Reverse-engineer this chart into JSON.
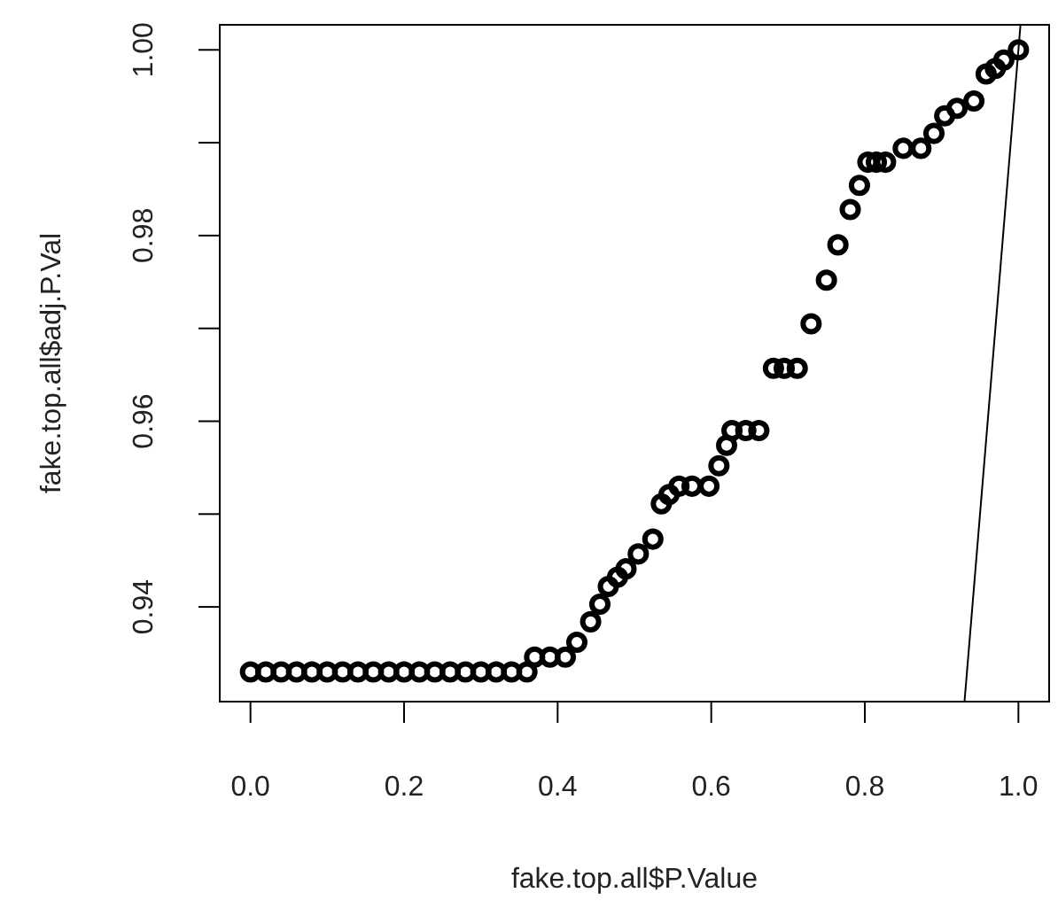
{
  "chart_data": {
    "type": "scatter",
    "xlabel": "fake.top.all$P.Value",
    "ylabel": "fake.top.all$adj.P.Val",
    "xlim": [
      -0.04,
      1.04
    ],
    "ylim": [
      0.9298,
      1.0027
    ],
    "xticks": [
      {
        "value": 0,
        "label": "0.0"
      },
      {
        "value": 0.2,
        "label": "0.2"
      },
      {
        "value": 0.4,
        "label": "0.4"
      },
      {
        "value": 0.6,
        "label": "0.6"
      },
      {
        "value": 0.8,
        "label": "0.8"
      },
      {
        "value": 1,
        "label": "1.0"
      }
    ],
    "yticks": [
      0.94,
      {
        "value": 0.95,
        "label": null
      },
      0.96,
      {
        "value": 0.97,
        "label": null
      },
      0.98,
      {
        "value": 0.99,
        "label": null
      },
      {
        "value": 1,
        "label": "1.00"
      }
    ],
    "grid": false,
    "marker": "circle",
    "series": [
      {
        "color": "#000000",
        "x": [
          0,
          0.02,
          0.04,
          0.06,
          0.08,
          0.1,
          0.12,
          0.14,
          0.16,
          0.18,
          0.2,
          0.22,
          0.24,
          0.26,
          0.28,
          0.3,
          0.32,
          0.34,
          0.36,
          0.37,
          0.39,
          0.41,
          0.425,
          0.443,
          0.455,
          0.466,
          0.478,
          0.489,
          0.505,
          0.524,
          0.535,
          0.545,
          0.558,
          0.575,
          0.597,
          0.61,
          0.62,
          0.627,
          0.645,
          0.662,
          0.681,
          0.695,
          0.712,
          0.73,
          0.75,
          0.765,
          0.781,
          0.793,
          0.804,
          0.815,
          0.827,
          0.85,
          0.873,
          0.89,
          0.904,
          0.92,
          0.942,
          0.958,
          0.97,
          0.981,
          1.0
        ],
        "values": [
          0.933,
          0.933,
          0.933,
          0.933,
          0.933,
          0.933,
          0.933,
          0.933,
          0.933,
          0.933,
          0.933,
          0.933,
          0.933,
          0.933,
          0.933,
          0.933,
          0.933,
          0.933,
          0.933,
          0.9346,
          0.9346,
          0.9346,
          0.9362,
          0.9384,
          0.9403,
          0.9422,
          0.9432,
          0.9441,
          0.9457,
          0.9473,
          0.9511,
          0.9521,
          0.953,
          0.953,
          0.953,
          0.9552,
          0.9574,
          0.959,
          0.959,
          0.959,
          0.9657,
          0.9657,
          0.9657,
          0.9705,
          0.9752,
          0.979,
          0.9828,
          0.9854,
          0.9879,
          0.9879,
          0.9879,
          0.9894,
          0.9894,
          0.991,
          0.9929,
          0.9937,
          0.9945,
          0.9974,
          0.998,
          0.9989,
          1.0
        ]
      },
      {
        "type": "line",
        "color": "#000000",
        "marker": "none",
        "x": [
          0.9298,
          1.0027
        ],
        "values": [
          0.9298,
          1.0027
        ]
      }
    ]
  }
}
